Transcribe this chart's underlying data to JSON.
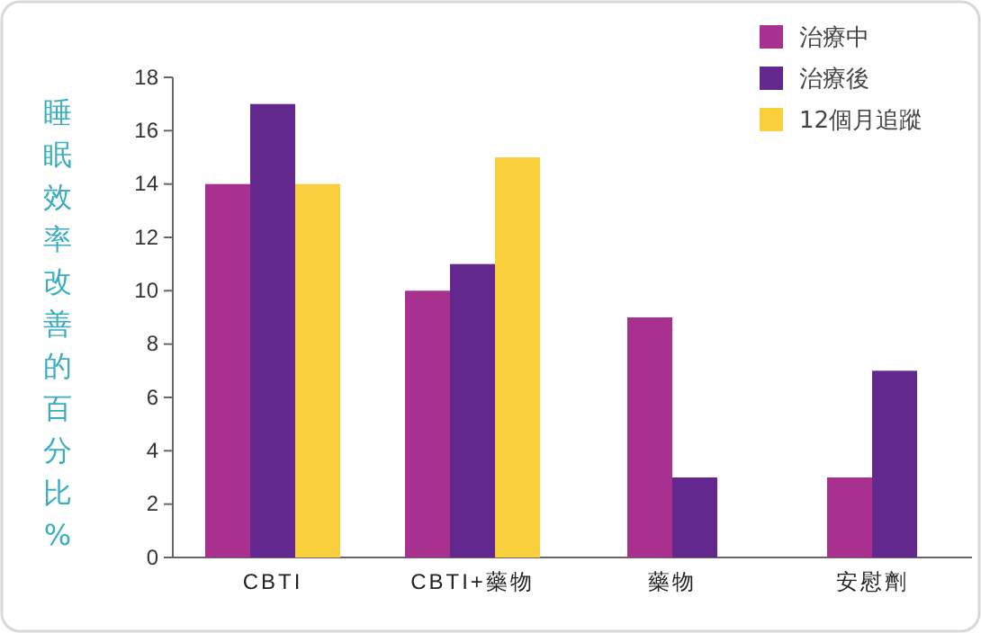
{
  "chart_data": {
    "type": "bar",
    "ylabel": "睡眠效率改善的百分比%",
    "categories": [
      "CBTI",
      "CBTI+藥物",
      "藥物",
      "安慰劑"
    ],
    "series": [
      {
        "name": "治療中",
        "color": "#a8308f",
        "values": [
          14,
          10,
          9,
          3
        ]
      },
      {
        "name": "治療後",
        "color": "#62288e",
        "values": [
          17,
          11,
          3,
          7
        ]
      },
      {
        "name": "12個月追蹤",
        "color": "#f9cf3e",
        "values": [
          14,
          15,
          null,
          null
        ]
      }
    ],
    "ylim": [
      0,
      18
    ],
    "yticks": [
      0,
      2,
      4,
      6,
      8,
      10,
      12,
      14,
      16,
      18
    ],
    "grid": false,
    "legend": "top right"
  }
}
